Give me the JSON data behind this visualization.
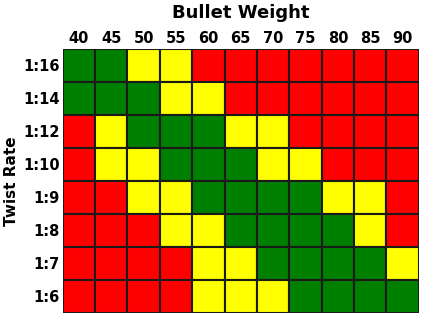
{
  "title": "Bullet Weight",
  "ylabel": "Twist Rate",
  "x_labels": [
    "40",
    "45",
    "50",
    "55",
    "60",
    "65",
    "70",
    "75",
    "80",
    "85",
    "90"
  ],
  "y_labels": [
    "1:16",
    "1:14",
    "1:12",
    "1:10",
    "1:9",
    "1:8",
    "1:7",
    "1:6"
  ],
  "colors": {
    "R": "#FF0000",
    "Y": "#FFFF00",
    "G": "#008000"
  },
  "grid": [
    [
      "G",
      "G",
      "Y",
      "Y",
      "R",
      "R",
      "R",
      "R",
      "R",
      "R",
      "R"
    ],
    [
      "G",
      "G",
      "G",
      "Y",
      "Y",
      "R",
      "R",
      "R",
      "R",
      "R",
      "R"
    ],
    [
      "R",
      "Y",
      "G",
      "G",
      "G",
      "Y",
      "Y",
      "R",
      "R",
      "R",
      "R"
    ],
    [
      "R",
      "Y",
      "Y",
      "G",
      "G",
      "G",
      "Y",
      "Y",
      "R",
      "R",
      "R"
    ],
    [
      "R",
      "R",
      "Y",
      "Y",
      "G",
      "G",
      "G",
      "G",
      "Y",
      "Y",
      "R"
    ],
    [
      "R",
      "R",
      "R",
      "Y",
      "Y",
      "G",
      "G",
      "G",
      "G",
      "Y",
      "R"
    ],
    [
      "R",
      "R",
      "R",
      "R",
      "Y",
      "Y",
      "G",
      "G",
      "G",
      "G",
      "Y"
    ],
    [
      "R",
      "R",
      "R",
      "R",
      "Y",
      "Y",
      "Y",
      "G",
      "G",
      "G",
      "G"
    ]
  ],
  "title_fontsize": 13,
  "label_fontsize": 11,
  "tick_fontsize": 10.5,
  "cell_border_color": "#1a1a1a",
  "background_color": "#ffffff",
  "cell_linewidth": 1.5
}
